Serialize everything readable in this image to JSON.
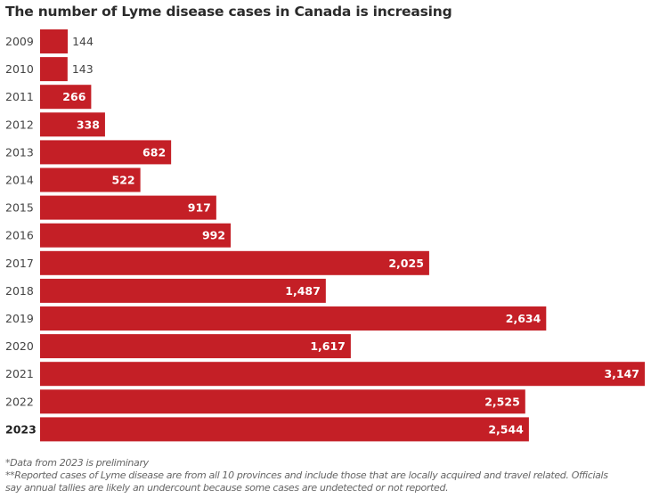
{
  "chart_data": {
    "type": "bar",
    "orientation": "horizontal",
    "title": "The number of Lyme disease cases in Canada is increasing",
    "xlabel": "",
    "ylabel": "",
    "categories": [
      "2009",
      "2010",
      "2011",
      "2012",
      "2013",
      "2014",
      "2015",
      "2016",
      "2017",
      "2018",
      "2019",
      "2020",
      "2021",
      "2022",
      "2023"
    ],
    "values": [
      144,
      143,
      266,
      338,
      682,
      522,
      917,
      992,
      2025,
      1487,
      2634,
      1617,
      3147,
      2525,
      2544
    ],
    "value_labels": [
      "144",
      "143",
      "266",
      "338",
      "682",
      "522",
      "917",
      "992",
      "2,025",
      "1,487",
      "2,634",
      "1,617",
      "3,147",
      "2,525",
      "2,544"
    ],
    "highlighted_category": "2023",
    "xlim": [
      0,
      3147
    ],
    "grid": false,
    "legend": "none",
    "bar_color": "#c41f26",
    "notes": [
      "*Data from 2023 is preliminary",
      "**Reported cases of Lyme disease are from all 10 provinces and include those that are locally acquired and travel related. Officials",
      "say annual tallies are likely an undercount because some cases are undetected or not reported."
    ]
  }
}
